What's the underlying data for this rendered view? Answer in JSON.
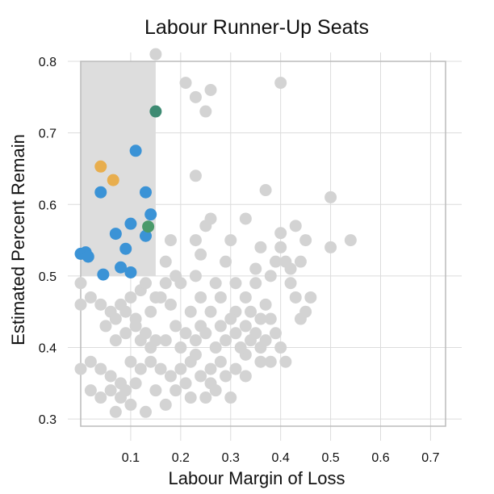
{
  "chart_data": {
    "type": "scatter",
    "title": "Labour Runner-Up Seats",
    "xlabel": "Labour Margin of Loss",
    "ylabel": "Estimated Percent Remain",
    "xlim": [
      0.0,
      0.73
    ],
    "ylim": [
      0.29,
      0.8
    ],
    "x_ticks": [
      0.1,
      0.2,
      0.3,
      0.4,
      0.5,
      0.6,
      0.7
    ],
    "x_tick_labels": [
      "0.1",
      "0.2",
      "0.3",
      "0.4",
      "0.5",
      "0.6",
      "0.7"
    ],
    "y_ticks": [
      0.3,
      0.4,
      0.5,
      0.6,
      0.7,
      0.8
    ],
    "y_tick_labels": [
      "0.3",
      "0.4",
      "0.5",
      "0.6",
      "0.7",
      "0.8"
    ],
    "grid": true,
    "highlight_region": {
      "x": [
        0.0,
        0.15
      ],
      "y": [
        0.5,
        0.8
      ],
      "color": "#dddddd"
    },
    "colors": {
      "background_points": "#d3d3d3",
      "blue": "#3b93d6",
      "orange": "#e8ae4e",
      "green": "#4a9a6a",
      "teal": "#3e8b73"
    },
    "series": [
      {
        "color": "#d3d3d3",
        "points": [
          [
            0.15,
            0.81
          ],
          [
            0.21,
            0.77
          ],
          [
            0.23,
            0.75
          ],
          [
            0.26,
            0.76
          ],
          [
            0.25,
            0.73
          ],
          [
            0.4,
            0.77
          ],
          [
            0.23,
            0.64
          ],
          [
            0.37,
            0.62
          ],
          [
            0.5,
            0.61
          ],
          [
            0.26,
            0.58
          ],
          [
            0.33,
            0.58
          ],
          [
            0.4,
            0.56
          ],
          [
            0.43,
            0.57
          ],
          [
            0.45,
            0.55
          ],
          [
            0.54,
            0.55
          ],
          [
            0.5,
            0.54
          ],
          [
            0.18,
            0.55
          ],
          [
            0.23,
            0.55
          ],
          [
            0.25,
            0.57
          ],
          [
            0.17,
            0.52
          ],
          [
            0.23,
            0.5
          ],
          [
            0.29,
            0.52
          ],
          [
            0.24,
            0.53
          ],
          [
            0.2,
            0.49
          ],
          [
            0.33,
            0.47
          ],
          [
            0.35,
            0.49
          ],
          [
            0.38,
            0.5
          ],
          [
            0.4,
            0.54
          ],
          [
            0.41,
            0.52
          ],
          [
            0.42,
            0.49
          ],
          [
            0.44,
            0.52
          ],
          [
            0.43,
            0.47
          ],
          [
            0.45,
            0.45
          ],
          [
            0.36,
            0.44
          ],
          [
            0.31,
            0.45
          ],
          [
            0.28,
            0.47
          ],
          [
            0.26,
            0.45
          ],
          [
            0.24,
            0.47
          ],
          [
            0.22,
            0.45
          ],
          [
            0.18,
            0.46
          ],
          [
            0.16,
            0.47
          ],
          [
            0.14,
            0.45
          ],
          [
            0.12,
            0.48
          ],
          [
            0.1,
            0.47
          ],
          [
            0.08,
            0.46
          ],
          [
            0.06,
            0.45
          ],
          [
            0.04,
            0.46
          ],
          [
            0.02,
            0.47
          ],
          [
            0.0,
            0.49
          ],
          [
            0.0,
            0.46
          ],
          [
            0.05,
            0.43
          ],
          [
            0.07,
            0.41
          ],
          [
            0.09,
            0.42
          ],
          [
            0.11,
            0.43
          ],
          [
            0.13,
            0.42
          ],
          [
            0.15,
            0.41
          ],
          [
            0.19,
            0.43
          ],
          [
            0.21,
            0.42
          ],
          [
            0.23,
            0.41
          ],
          [
            0.25,
            0.42
          ],
          [
            0.27,
            0.4
          ],
          [
            0.29,
            0.41
          ],
          [
            0.31,
            0.42
          ],
          [
            0.33,
            0.43
          ],
          [
            0.35,
            0.42
          ],
          [
            0.37,
            0.41
          ],
          [
            0.39,
            0.42
          ],
          [
            0.4,
            0.4
          ],
          [
            0.38,
            0.38
          ],
          [
            0.33,
            0.39
          ],
          [
            0.31,
            0.37
          ],
          [
            0.28,
            0.38
          ],
          [
            0.26,
            0.37
          ],
          [
            0.24,
            0.36
          ],
          [
            0.22,
            0.38
          ],
          [
            0.2,
            0.37
          ],
          [
            0.18,
            0.36
          ],
          [
            0.16,
            0.37
          ],
          [
            0.14,
            0.38
          ],
          [
            0.12,
            0.37
          ],
          [
            0.1,
            0.38
          ],
          [
            0.08,
            0.35
          ],
          [
            0.06,
            0.36
          ],
          [
            0.04,
            0.37
          ],
          [
            0.02,
            0.38
          ],
          [
            0.0,
            0.37
          ],
          [
            0.02,
            0.34
          ],
          [
            0.04,
            0.33
          ],
          [
            0.06,
            0.34
          ],
          [
            0.08,
            0.33
          ],
          [
            0.1,
            0.32
          ],
          [
            0.13,
            0.31
          ],
          [
            0.17,
            0.32
          ],
          [
            0.07,
            0.31
          ],
          [
            0.22,
            0.33
          ],
          [
            0.26,
            0.35
          ],
          [
            0.3,
            0.33
          ],
          [
            0.33,
            0.36
          ],
          [
            0.36,
            0.38
          ],
          [
            0.41,
            0.38
          ],
          [
            0.44,
            0.44
          ],
          [
            0.46,
            0.47
          ],
          [
            0.42,
            0.51
          ],
          [
            0.39,
            0.52
          ],
          [
            0.36,
            0.54
          ],
          [
            0.3,
            0.55
          ],
          [
            0.27,
            0.49
          ],
          [
            0.31,
            0.49
          ],
          [
            0.19,
            0.5
          ],
          [
            0.17,
            0.49
          ],
          [
            0.15,
            0.47
          ],
          [
            0.13,
            0.49
          ],
          [
            0.11,
            0.44
          ],
          [
            0.09,
            0.45
          ],
          [
            0.07,
            0.44
          ],
          [
            0.3,
            0.44
          ],
          [
            0.34,
            0.45
          ],
          [
            0.37,
            0.46
          ],
          [
            0.28,
            0.43
          ],
          [
            0.32,
            0.4
          ],
          [
            0.34,
            0.41
          ],
          [
            0.36,
            0.4
          ],
          [
            0.24,
            0.43
          ],
          [
            0.2,
            0.4
          ],
          [
            0.17,
            0.41
          ],
          [
            0.14,
            0.4
          ],
          [
            0.12,
            0.41
          ],
          [
            0.29,
            0.36
          ],
          [
            0.27,
            0.34
          ],
          [
            0.25,
            0.33
          ],
          [
            0.21,
            0.35
          ],
          [
            0.19,
            0.34
          ],
          [
            0.15,
            0.34
          ],
          [
            0.11,
            0.35
          ],
          [
            0.09,
            0.34
          ],
          [
            0.23,
            0.39
          ],
          [
            0.38,
            0.44
          ],
          [
            0.35,
            0.51
          ]
        ]
      },
      {
        "color": "#3b93d6",
        "points": [
          [
            0.11,
            0.675
          ],
          [
            0.04,
            0.617
          ],
          [
            0.13,
            0.617
          ],
          [
            0.14,
            0.586
          ],
          [
            0.1,
            0.573
          ],
          [
            0.07,
            0.559
          ],
          [
            0.13,
            0.556
          ],
          [
            0.09,
            0.538
          ],
          [
            0.0,
            0.531
          ],
          [
            0.01,
            0.533
          ],
          [
            0.015,
            0.527
          ],
          [
            0.08,
            0.512
          ],
          [
            0.1,
            0.505
          ],
          [
            0.045,
            0.502
          ]
        ]
      },
      {
        "color": "#e8ae4e",
        "points": [
          [
            0.04,
            0.653
          ],
          [
            0.065,
            0.634
          ]
        ]
      },
      {
        "color": "#4a9a6a",
        "points": [
          [
            0.135,
            0.569
          ]
        ]
      },
      {
        "color": "#3e8b73",
        "points": [
          [
            0.15,
            0.73
          ]
        ]
      }
    ]
  }
}
